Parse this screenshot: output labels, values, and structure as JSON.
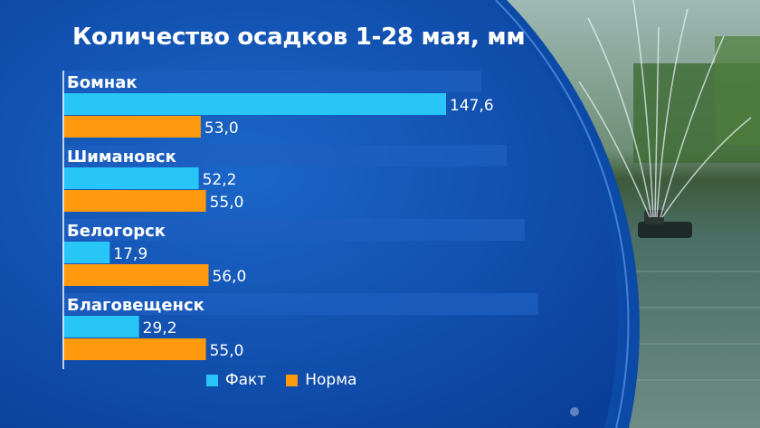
{
  "title": "Количество осадков 1-28 мая, мм",
  "colors": {
    "fact": "#27c6f7",
    "norm": "#ff9a0f",
    "band": "#1d5fc0",
    "text": "#ffffff"
  },
  "legend": {
    "fact_label": "Факт",
    "norm_label": "Норма"
  },
  "chart_data": {
    "type": "bar",
    "orientation": "horizontal",
    "title": "Количество осадков 1-28 мая, мм",
    "categories": [
      "Бомнак",
      "Шимановск",
      "Белогорск",
      "Благовещенск"
    ],
    "series": [
      {
        "name": "Факт",
        "values": [
          147.6,
          52.2,
          17.9,
          29.2
        ],
        "labels": [
          "147,6",
          "52,2",
          "17,9",
          "29,2"
        ]
      },
      {
        "name": "Норма",
        "values": [
          53.0,
          55.0,
          56.0,
          55.0
        ],
        "labels": [
          "53,0",
          "55,0",
          "56,0",
          "55,0"
        ]
      }
    ],
    "legend_position": "bottom",
    "grid": false
  }
}
